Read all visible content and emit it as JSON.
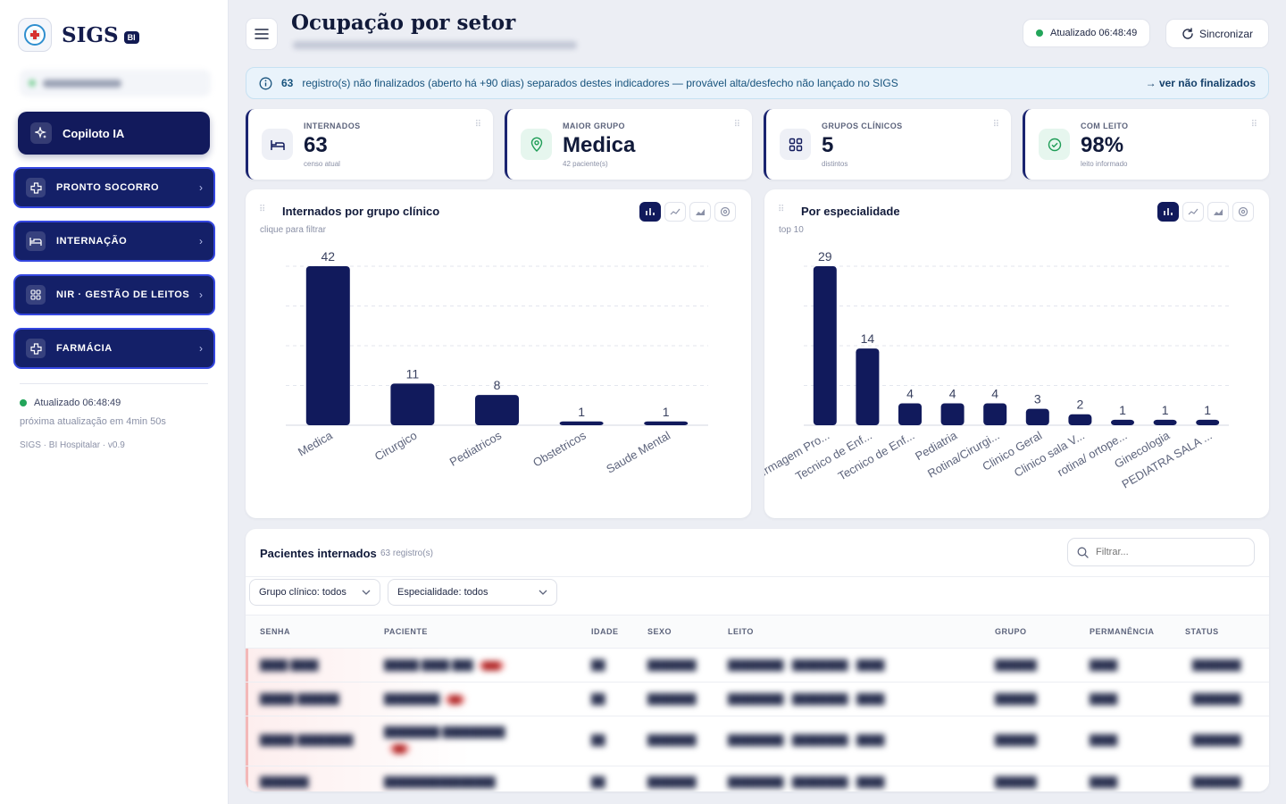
{
  "app": {
    "name": "SIGS",
    "badge": "BI"
  },
  "sidebar": {
    "user": "",
    "copilot_label": "Copiloto IA",
    "nav": [
      {
        "label": "PRONTO SOCORRO",
        "icon": "plus-cross-icon"
      },
      {
        "label": "INTERNAÇÃO",
        "icon": "bed-icon"
      },
      {
        "label": "NIR · GESTÃO DE LEITOS",
        "icon": "grid-icon"
      },
      {
        "label": "FARMÁCIA",
        "icon": "plus-cross-icon"
      }
    ],
    "status_updated": "Atualizado 06:48:49",
    "next_update": "próxima atualização em 4min 50s",
    "version": "SIGS · BI Hospitalar · v0.9"
  },
  "header": {
    "title": "Ocupação por setor",
    "updated_pill": "Atualizado 06:48:49",
    "sync_label": "Sincronizar"
  },
  "alert": {
    "count": "63",
    "text": "registro(s) não finalizados (aberto há +90 dias) separados destes indicadores — provável alta/desfecho não lançado no SIGS",
    "link": "→ ver não finalizados",
    "color": "#e9f3fb"
  },
  "kpis": [
    {
      "label": "INTERNADOS",
      "value": "63",
      "sub": "censo atual",
      "icon": "bed-icon",
      "icon_bg": "#eef0f6"
    },
    {
      "label": "MAIOR GRUPO",
      "value": "Medica",
      "sub": "42 paciente(s)",
      "icon": "location-pin-icon",
      "icon_bg": "#e6f6ee"
    },
    {
      "label": "GRUPOS CLÍNICOS",
      "value": "5",
      "sub": "distintos",
      "icon": "grid-icon",
      "icon_bg": "#eef0f6"
    },
    {
      "label": "COM LEITO",
      "value": "98%",
      "sub": "leito informado",
      "icon": "check-circle-icon",
      "icon_bg": "#e6f6ee"
    }
  ],
  "charts": {
    "left_title": "Internados por grupo clínico",
    "left_hint": "clique para filtrar",
    "right_title": "Por especialidade",
    "right_hint": "top 10"
  },
  "chart_data": [
    {
      "type": "bar",
      "title": "Internados por grupo clínico",
      "categories": [
        "Medica",
        "Cirurgico",
        "Pediatricos",
        "Obstetricos",
        "Saude Mental"
      ],
      "values": [
        42,
        11,
        8,
        1,
        1
      ],
      "ylim": [
        0,
        42
      ],
      "grid": true,
      "color": "#111a5c"
    },
    {
      "type": "bar",
      "title": "Por especialidade",
      "categories": [
        "Enfermagem Pro...",
        "Tecnico de Enf...",
        "Tecnico de Enf...",
        "Pediatria",
        "Rotina/Cirurgi...",
        "Clinico Geral",
        "Clinico sala V...",
        "rotina/ ortope...",
        "Ginecologia",
        "PEDIATRA SALA ..."
      ],
      "values": [
        29,
        14,
        4,
        4,
        4,
        3,
        2,
        1,
        1,
        1
      ],
      "ylim": [
        0,
        29
      ],
      "grid": true,
      "color": "#111a5c"
    }
  ],
  "table": {
    "title": "Pacientes internados",
    "count": "63 registro(s)",
    "search_placeholder": "Filtrar...",
    "group_filter": "Grupo clínico: todos",
    "specialty_filter": "Especialidade: todos",
    "headers": [
      "SENHA",
      "PACIENTE",
      "IDADE",
      "SEXO",
      "LEITO",
      "GRUPO",
      "PERMANÊNCIA",
      "STATUS"
    ]
  }
}
